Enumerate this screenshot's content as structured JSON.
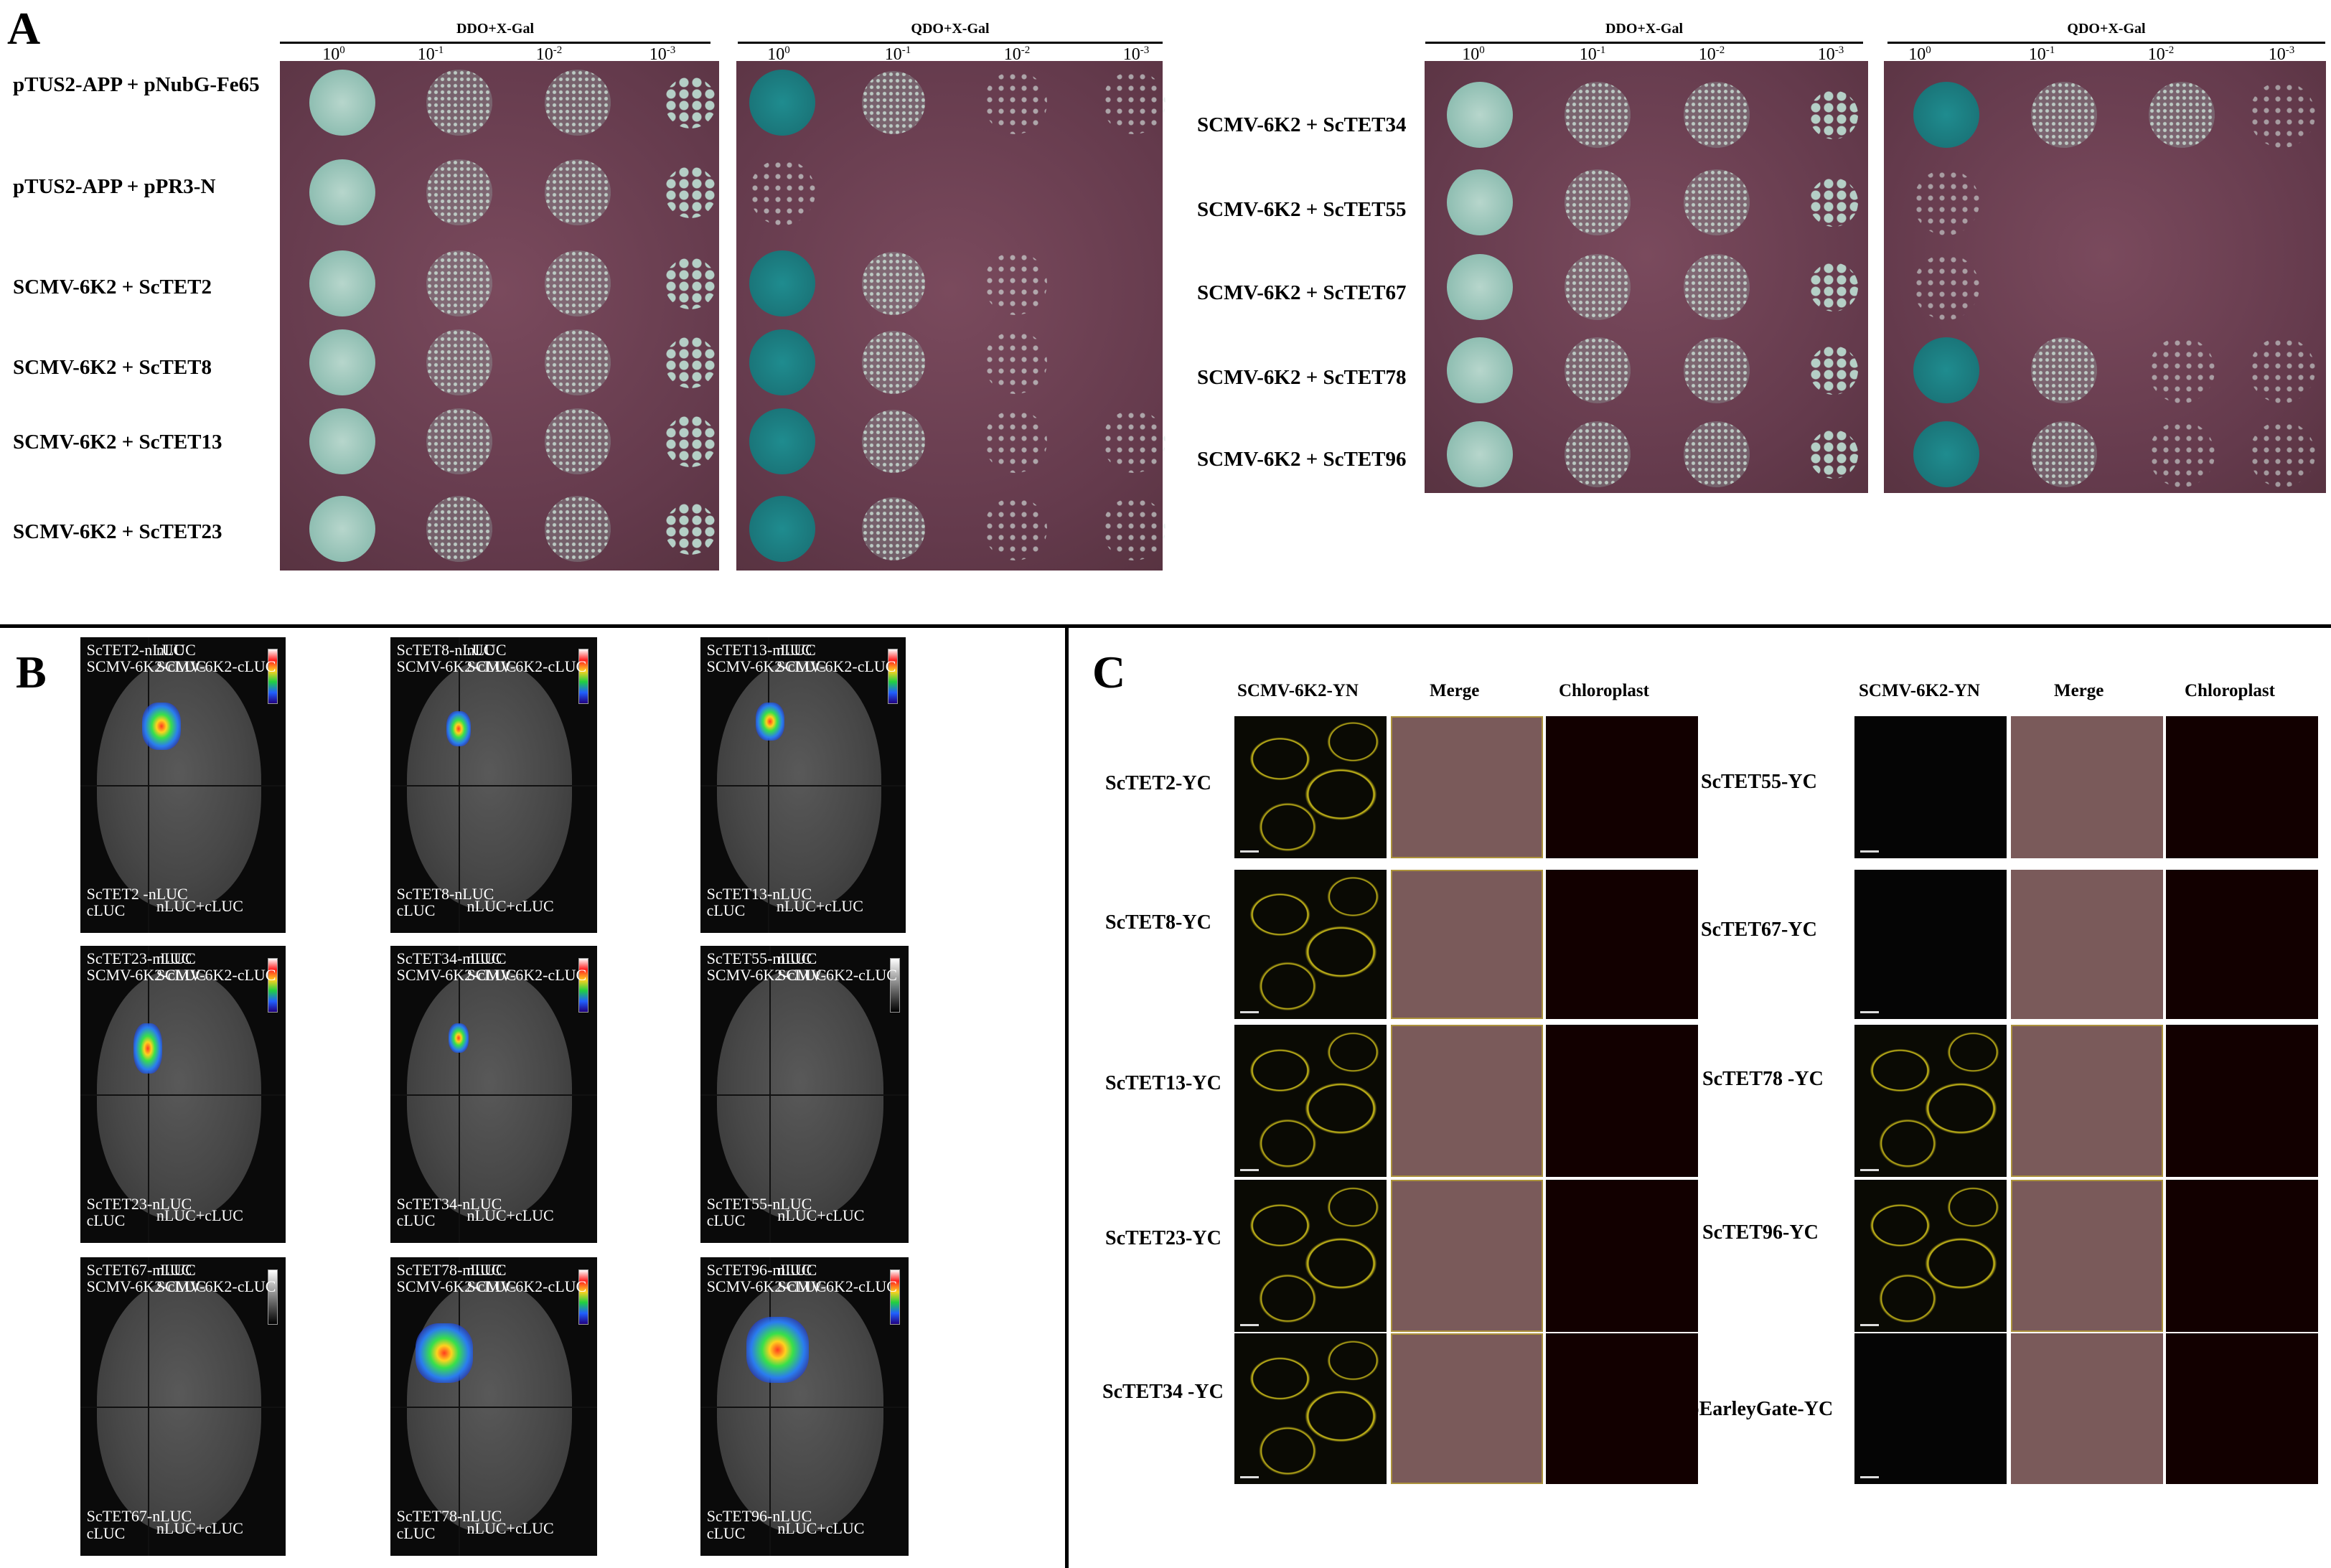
{
  "panel_letters": {
    "a": "A",
    "b": "B",
    "c": "C"
  },
  "panel_a": {
    "media_left": [
      "DDO+X-Gal",
      "QDO+X-Gal"
    ],
    "media_right": [
      "DDO+X-Gal",
      "QDO+X-Gal"
    ],
    "dilutions": [
      "10",
      "10",
      "10",
      "10"
    ],
    "dilution_exponents": [
      "0",
      "-1",
      "-2",
      "-3"
    ],
    "rows_left": [
      "pTUS2-APP + pNubG-Fe65",
      "pTUS2-APP + pPR3-N",
      "SCMV-6K2 + ScTET2",
      "SCMV-6K2 + ScTET8",
      "SCMV-6K2 + ScTET13",
      "SCMV-6K2 + ScTET23"
    ],
    "rows_right": [
      "SCMV-6K2 + ScTET34",
      "SCMV-6K2 + ScTET55",
      "SCMV-6K2 + ScTET67",
      "SCMV-6K2 + ScTET78",
      "SCMV-6K2 + ScTET96"
    ]
  },
  "panel_b": {
    "panels": [
      {
        "tl": "ScTET2-nLUC\nSCMV-6K2-cLUC",
        "tr": "nLUC\nSCMV-6K2-cLUC",
        "bl": "ScTET2 -nLUC\ncLUC",
        "br": "nLUC+cLUC"
      },
      {
        "tl": "ScTET8-nLUC\nSCMV-6K2-cLUC",
        "tr": "nLUC\nSCMV-6K2-cLUC",
        "bl": "ScTET8-nLUC\ncLUC",
        "br": "nLUC+cLUC"
      },
      {
        "tl": "ScTET13-nLUC\nSCMV-6K2-cLUC",
        "tr": "nLUC\nSCMV-6K2-cLUC",
        "bl": "ScTET13-nLUC\ncLUC",
        "br": "nLUC+cLUC"
      },
      {
        "tl": "ScTET23-nLUC\nSCMV-6K2-cLUC",
        "tr": "nLUC\nSCMV-6K2-cLUC",
        "bl": "ScTET23-nLUC\ncLUC",
        "br": "nLUC+cLUC"
      },
      {
        "tl": "ScTET34-nLUC\nSCMV-6K2-cLUC",
        "tr": "nLUC\nSCMV-6K2-cLUC",
        "bl": "ScTET34-nLUC\ncLUC",
        "br": "nLUC+cLUC"
      },
      {
        "tl": "ScTET55-nLUC\nSCMV-6K2-cLUC",
        "tr": "nLUC\nSCMV-6K2-cLUC",
        "bl": "ScTET55-nLUC\ncLUC",
        "br": "nLUC+cLUC"
      },
      {
        "tl": "ScTET67-nLUC\nSCMV-6K2-cLUC",
        "tr": "nLUC\nSCMV-6K2-cLUC",
        "bl": "ScTET67-nLUC\ncLUC",
        "br": "nLUC+cLUC"
      },
      {
        "tl": "ScTET78-nLUC\nSCMV-6K2-cLUC",
        "tr": "nLUC\nSCMV-6K2-cLUC",
        "bl": "ScTET78-nLUC\ncLUC",
        "br": "nLUC+cLUC"
      },
      {
        "tl": "ScTET96-nLUC\nSCMV-6K2-cLUC",
        "tr": "nLUC\nSCMV-6K2-cLUC",
        "bl": "ScTET96-nLUC\ncLUC",
        "br": "nLUC+cLUC"
      }
    ]
  },
  "panel_c": {
    "column_headers": [
      "SCMV-6K2-YN",
      "Merge",
      "Chloroplast"
    ],
    "rows_left": [
      "ScTET2-YC",
      "ScTET8-YC",
      "ScTET13-YC",
      "ScTET23-YC",
      "ScTET34 -YC"
    ],
    "rows_right": [
      "ScTET55-YC",
      "ScTET67-YC",
      "ScTET78 -YC",
      "ScTET96-YC",
      "pEarleyGate-YC"
    ]
  },
  "colors": {
    "plate": "#6d3f52",
    "colony": "#9fc7bd",
    "blue_colony": "#1f8c8f",
    "yfp": "#e6d81c",
    "chloroplast": "#e01010"
  }
}
